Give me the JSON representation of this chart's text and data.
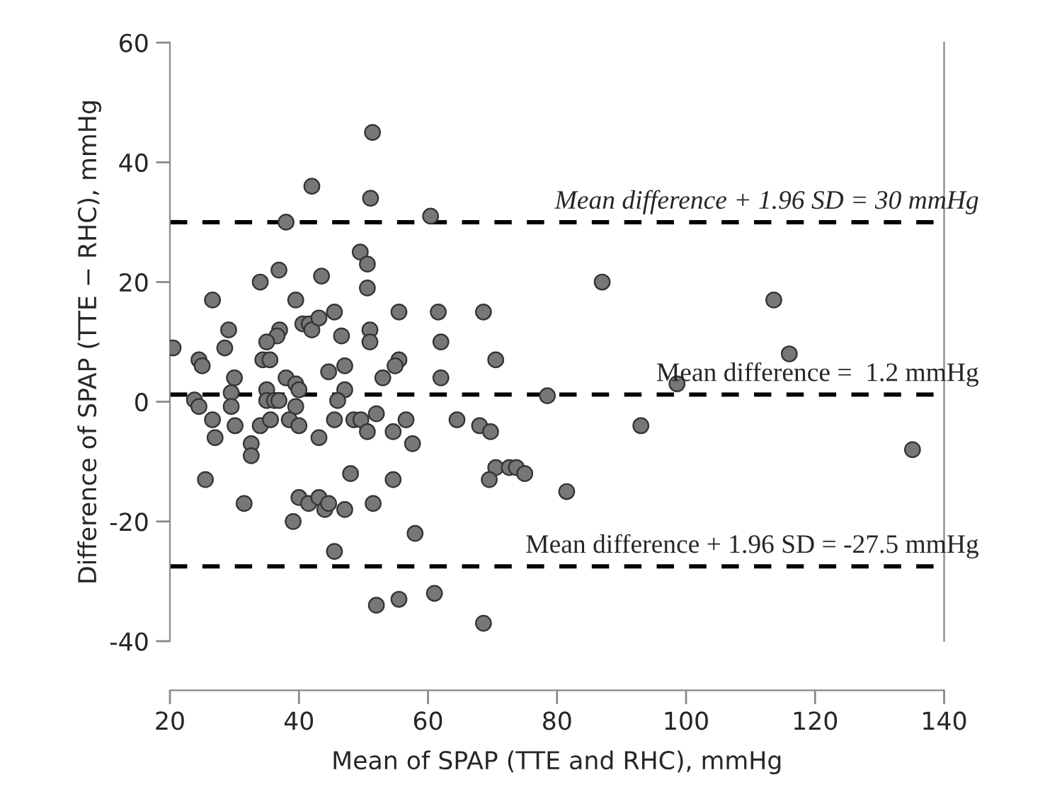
{
  "chart_data": {
    "type": "scatter",
    "xlabel": "Mean of SPAP (TTE and RHC), mmHg",
    "ylabel": "Difference of SPAP (TTE − RHC), mmHg",
    "xlim": [
      20,
      140
    ],
    "ylim": [
      -40,
      60
    ],
    "xticks": [
      20,
      40,
      60,
      80,
      100,
      120,
      140
    ],
    "yticks": [
      -40,
      -20,
      0,
      20,
      40,
      60
    ],
    "grid": false,
    "marker": "circle",
    "series": [
      {
        "color": "#777777",
        "x": [
          51.4,
          42.0,
          51.1,
          38.0,
          60.4,
          49.5,
          50.6,
          36.9,
          34.0,
          43.5,
          50.6,
          26.6,
          39.5,
          55.5,
          45.5,
          29.1,
          37.0,
          36.6,
          40.6,
          41.6,
          42.0,
          43.1,
          46.6,
          51.0,
          51.0,
          35.0,
          20.5,
          28.5,
          24.5,
          25.0,
          34.4,
          35.5,
          47.1,
          55.5,
          54.9,
          30.0,
          38.0,
          44.6,
          53.0,
          39.5,
          40.0,
          35.0,
          47.1,
          29.5,
          23.8,
          24.5,
          29.5,
          35.0,
          36.2,
          36.9,
          39.5,
          46.0,
          26.6,
          27.0,
          30.1,
          32.6,
          32.6,
          34.0,
          35.6,
          38.5,
          40.0,
          43.1,
          45.5,
          48.5,
          49.6,
          50.6,
          52.0,
          54.6,
          56.6,
          57.6,
          25.5,
          48.0,
          54.6,
          31.5,
          40.0,
          41.5,
          43.1,
          44.0,
          44.6,
          47.1,
          51.5,
          39.1,
          58.0,
          45.5,
          52.0,
          55.5,
          87.0,
          61.6,
          68.6,
          62.0,
          70.5,
          62.0,
          78.5,
          98.6,
          64.5,
          68.0,
          69.7,
          93.0,
          70.5,
          72.6,
          73.7,
          69.5,
          75.0,
          81.5,
          61.0,
          68.6,
          113.6,
          116.0,
          135.1
        ],
        "values": [
          45,
          36,
          34,
          30,
          31,
          25,
          23,
          22,
          20,
          21,
          19,
          17,
          17,
          15,
          15,
          12,
          12,
          11,
          13,
          13,
          12,
          14,
          11,
          12,
          10,
          10,
          9,
          9,
          7,
          6,
          7,
          7,
          6,
          7,
          6,
          4,
          4,
          5,
          4,
          3,
          2,
          2,
          2,
          1.5,
          0.3,
          -0.8,
          -0.8,
          0.2,
          0.2,
          0.2,
          -0.8,
          0.2,
          -3,
          -6,
          -4,
          -7,
          -9,
          -4,
          -3,
          -3,
          -4,
          -6,
          -3,
          -3,
          -3,
          -5,
          -2,
          -5,
          -3,
          -7,
          -13,
          -12,
          -13,
          -17,
          -16,
          -17,
          -16,
          -18,
          -17,
          -18,
          -17,
          -20,
          -22,
          -25,
          -34,
          -33,
          20,
          15,
          15,
          10,
          7,
          4,
          1,
          3,
          -3,
          -4,
          -5,
          -4,
          -11,
          -11,
          -11,
          -13,
          -12,
          -15,
          -32,
          -37,
          17,
          8,
          -8
        ]
      }
    ],
    "ref_lines": [
      {
        "axis": "y",
        "value": 30,
        "label": "Mean difference + 1.96 SD = 30 mmHg",
        "color": "#000000",
        "line_style": "dashed"
      },
      {
        "axis": "y",
        "value": 1.2,
        "label": "Mean difference =  1.2 mmHg",
        "color": "#000000",
        "line_style": "dashed"
      },
      {
        "axis": "y",
        "value": -27.5,
        "label": "Mean difference + 1.96 SD = -27.5 mmHg",
        "color": "#000000",
        "line_style": "dashed"
      }
    ]
  }
}
